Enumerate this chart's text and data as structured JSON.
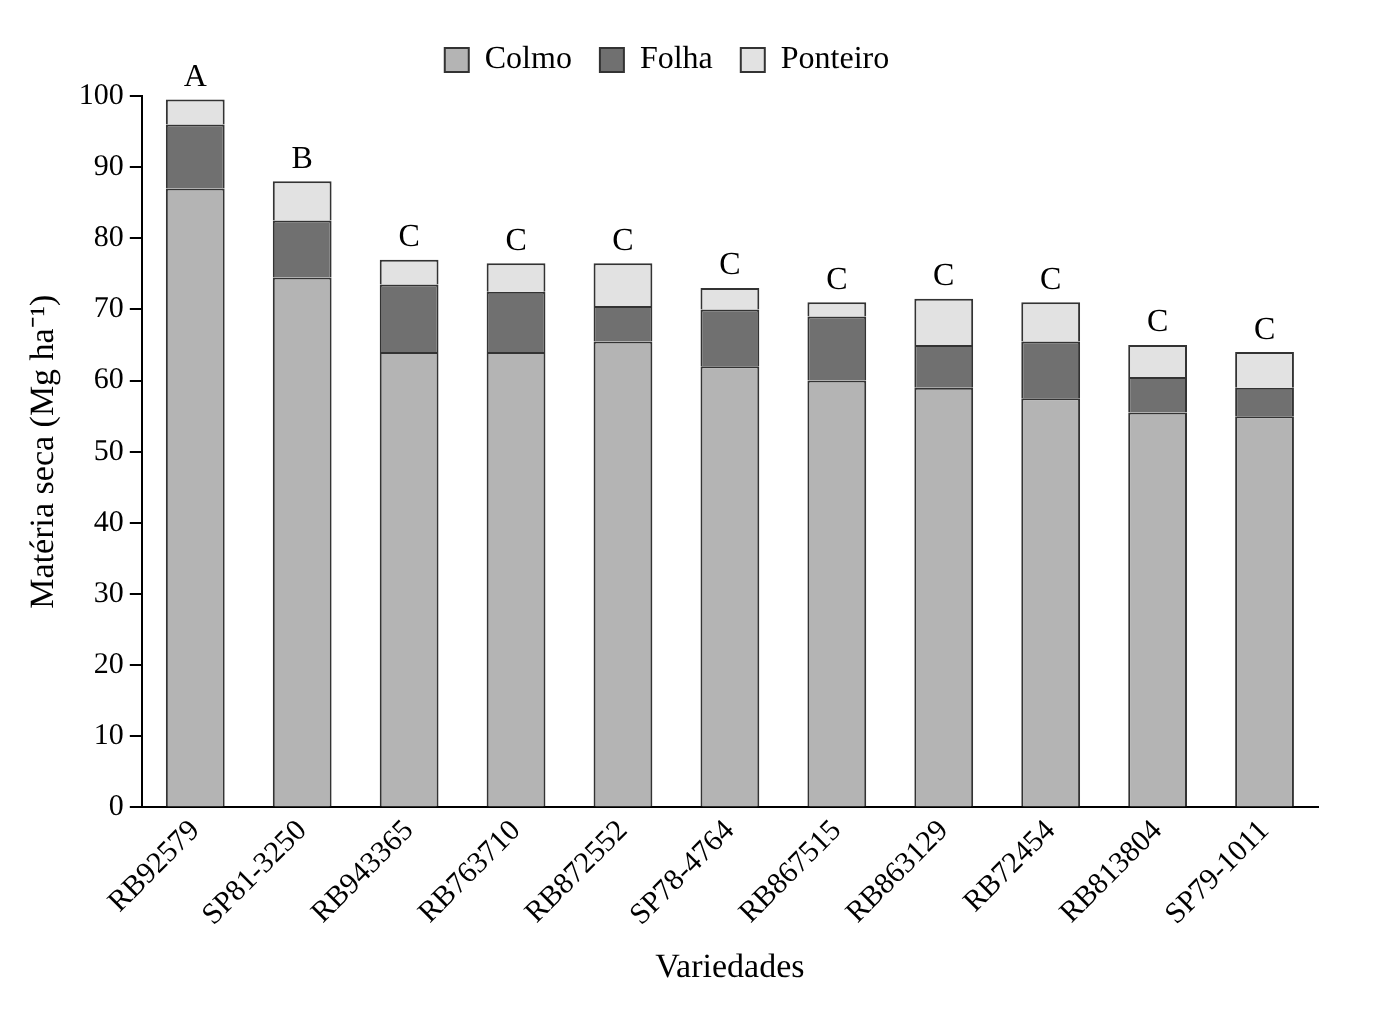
{
  "chart_data": {
    "type": "bar",
    "stacked": true,
    "xlabel": "Variedades",
    "ylabel": "Matéria seca (Mg ha⁻¹)",
    "categories": [
      "RB92579",
      "SP81-3250",
      "RB943365",
      "RB763710",
      "RB872552",
      "SP78-4764",
      "RB867515",
      "RB863129",
      "RB72454",
      "RB813804",
      "SP79-1011"
    ],
    "series": [
      {
        "name": "Colmo",
        "color": "#b4b4b4",
        "values": [
          87,
          74.5,
          64,
          64,
          65.5,
          62,
          60,
          59,
          57.5,
          55.5,
          55
        ]
      },
      {
        "name": "Folha",
        "color": "#707070",
        "values": [
          9,
          8,
          9.5,
          8.5,
          5,
          8,
          9,
          6,
          8,
          5,
          4
        ]
      },
      {
        "name": "Ponteiro",
        "color": "#e2e2e2",
        "values": [
          3.5,
          5.5,
          3.5,
          4,
          6,
          3,
          2,
          6.5,
          5.5,
          4.5,
          5
        ]
      }
    ],
    "ylim": [
      0,
      100
    ],
    "yticks": [
      0,
      10,
      20,
      30,
      40,
      50,
      60,
      70,
      80,
      90,
      100
    ],
    "grid": false,
    "legend": "top",
    "annotations": [
      {
        "text": "A",
        "x": "RB92579",
        "y": 99.5
      },
      {
        "text": "B",
        "x": "SP81-3250",
        "y": 88
      },
      {
        "text": "C",
        "x": "RB943365",
        "y": 77
      },
      {
        "text": "C",
        "x": "RB763710",
        "y": 76.5
      },
      {
        "text": "C",
        "x": "RB872552",
        "y": 76.5
      },
      {
        "text": "C",
        "x": "SP78-4764",
        "y": 73
      },
      {
        "text": "C",
        "x": "RB867515",
        "y": 71
      },
      {
        "text": "C",
        "x": "RB863129",
        "y": 71.5
      },
      {
        "text": "C",
        "x": "RB72454",
        "y": 71
      },
      {
        "text": "C",
        "x": "RB813804",
        "y": 65
      },
      {
        "text": "C",
        "x": "SP79-1011",
        "y": 64
      }
    ]
  }
}
